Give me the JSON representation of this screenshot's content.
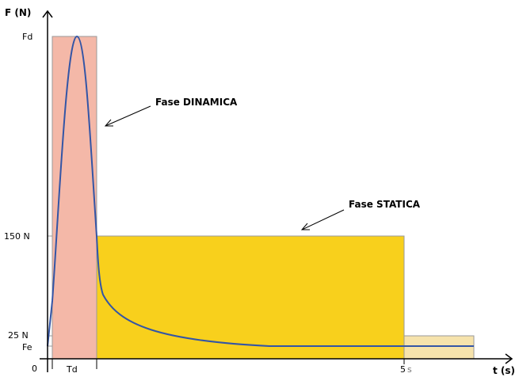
{
  "axes": {
    "y_title": "F (N)",
    "x_title": "t (s)",
    "y_ticks": {
      "fd": "Fd",
      "n150": "150 N",
      "n25": "25 N",
      "fe": "Fe"
    },
    "x_ticks": {
      "zero": "0",
      "td": "Td",
      "five": "5",
      "five_unit": "s"
    }
  },
  "annotations": {
    "dynamic": "Fase DINAMICA",
    "static": "Fase STATICA"
  },
  "colors": {
    "dynamic_fill": "#f4b8a8",
    "static_fill": "#f8d01c",
    "tail_fill": "#f6e3ac",
    "curve": "#3355a6",
    "guide": "#999999"
  }
}
